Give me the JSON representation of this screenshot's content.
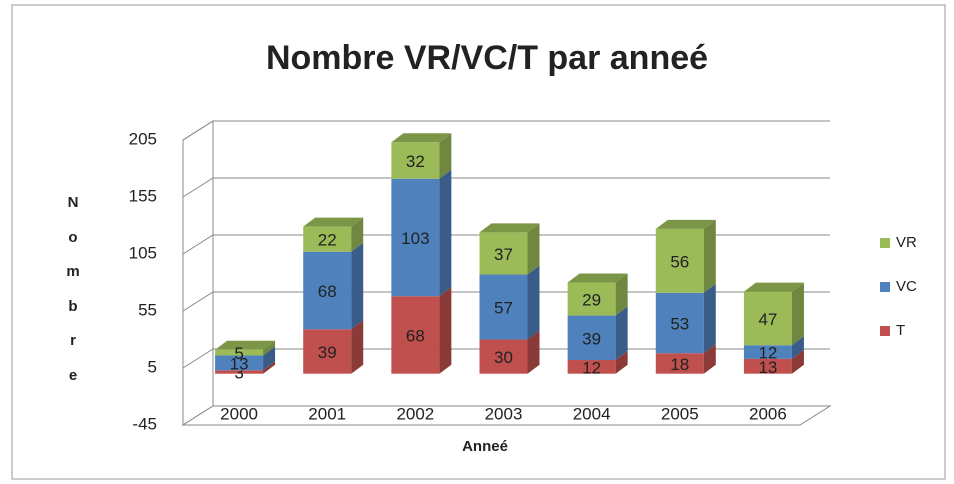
{
  "chart_data": {
    "type": "bar3d_stacked",
    "title": "Nombre VR/VC/T par anneé",
    "x_label": "Anneé",
    "y_label": "Nombre",
    "categories": [
      "2000",
      "2001",
      "2002",
      "2003",
      "2004",
      "2005",
      "2006"
    ],
    "series": [
      {
        "name": "T",
        "color": "#c0504d",
        "values": [
          3,
          39,
          68,
          30,
          12,
          18,
          13
        ]
      },
      {
        "name": "VC",
        "color": "#4f81bd",
        "values": [
          13,
          68,
          103,
          57,
          39,
          53,
          12
        ]
      },
      {
        "name": "VR",
        "color": "#9bbb59",
        "values": [
          5,
          22,
          32,
          37,
          29,
          56,
          47
        ]
      }
    ],
    "ylim": [
      -45,
      205
    ],
    "yticks": [
      -45,
      5,
      55,
      105,
      155,
      205
    ],
    "grid": true,
    "legend": "right"
  }
}
